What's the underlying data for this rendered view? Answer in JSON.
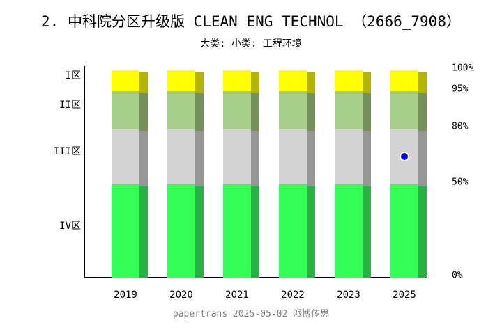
{
  "page": {
    "title": "2. 中科院分区升级版 CLEAN ENG TECHNOL （2666_7908）",
    "subtitle": "大类:  小类: 工程环境",
    "footer": "papertrans 2025-05-02 派博传思"
  },
  "chart_data": {
    "type": "bar",
    "stacked": true,
    "title": "2. 中科院分区升级版 CLEAN ENG TECHNOL （2666_7908）",
    "subtitle": "大类:  小类: 工程环境",
    "categories": [
      "2019",
      "2020",
      "2021",
      "2022",
      "2023",
      "2025"
    ],
    "series": [
      {
        "name": "IV区",
        "values": [
          50,
          50,
          50,
          50,
          50,
          50
        ],
        "color": "#33FF55",
        "shadow_color": "#27B343"
      },
      {
        "name": "III区",
        "values": [
          30,
          30,
          30,
          30,
          30,
          30
        ],
        "color": "#D3D3D3",
        "shadow_color": "#969696"
      },
      {
        "name": "II区",
        "values": [
          15,
          15,
          15,
          15,
          15,
          15
        ],
        "color": "#A8CE8C",
        "shadow_color": "#739159"
      },
      {
        "name": "I区",
        "values": [
          5,
          5,
          5,
          5,
          5,
          5
        ],
        "color": "#FFFF00",
        "shadow_color": "#B3B300"
      }
    ],
    "y_axis": {
      "position": "right",
      "ylim": [
        0,
        100
      ],
      "ticks": [
        {
          "label": "100%",
          "percent": 100
        },
        {
          "label": "95%",
          "percent": 95
        },
        {
          "label": "80%",
          "percent": 80
        },
        {
          "label": "50%",
          "percent": 50
        },
        {
          "label": "0%",
          "percent": 0
        }
      ]
    },
    "zone_axis": {
      "position": "left",
      "labels": [
        "I区",
        "II区",
        "III区",
        "IV区"
      ]
    },
    "marker": {
      "category": "2025",
      "percent": 65,
      "color": "#0000EE",
      "outline_color": "#FFFFFF"
    },
    "grid": false,
    "legend": false
  }
}
